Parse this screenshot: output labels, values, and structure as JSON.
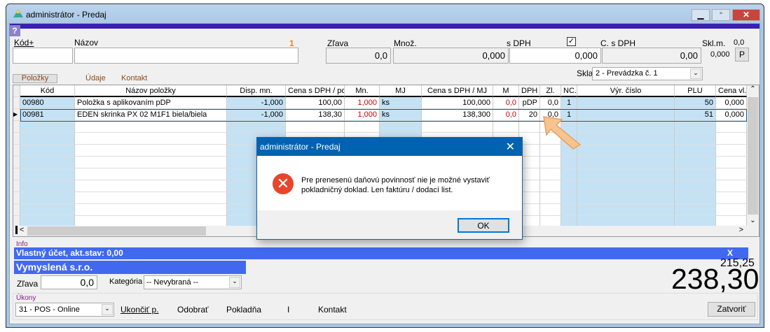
{
  "window": {
    "title": "administrátor - Predaj",
    "help": "?"
  },
  "entry": {
    "kod_label": "Kód+",
    "nazov_label": "Názov",
    "counter": "1",
    "zlava_label": "Zľava",
    "mnoz_label": "Množ.",
    "sdph_label": "s DPH",
    "sdph_checked": true,
    "csdph_label": "C. s DPH",
    "sklm_label": "Skl.m.",
    "sklm_value": "0,0",
    "kod_value": "",
    "nazov_value": "",
    "zlava_value": "0,0",
    "mnoz_value": "0,000",
    "sdph_value": "0,000",
    "csdph_value": "0,00",
    "stock_value": "0,000",
    "p_button": "P"
  },
  "tabs": [
    {
      "label": "Položky",
      "active": true
    },
    {
      "label": "Údaje"
    },
    {
      "label": "Kontakt"
    }
  ],
  "sklad": {
    "label": "Sklad",
    "value": "2 - Prevádzka č. 1"
  },
  "grid": {
    "columns": [
      "Kód",
      "Názov položky",
      "Disp. mn.",
      "Cena s DPH / pol",
      "Mn.",
      "MJ",
      "Cena s DPH / MJ",
      "M",
      "DPH",
      "Zl.",
      "NC.",
      "Výr. číslo",
      "PLU",
      "Cena vl."
    ],
    "rows": [
      [
        "00980",
        "Položka s aplikovaním pDP",
        "-1,000",
        "100,00",
        "1,000",
        "ks",
        "100,000",
        "0,0",
        "pDP",
        "0,0",
        "1",
        "",
        "50",
        "0,000"
      ],
      [
        "00981",
        "EDEN skrinka PX 02 M1F1 biela/biela",
        "-1,000",
        "138,30",
        "1,000",
        "ks",
        "138,300",
        "0,0",
        "20",
        "0,0",
        "1",
        "",
        "51",
        "0,000"
      ]
    ],
    "selected_row": 1
  },
  "info": {
    "label": "Info",
    "account": "Vlastný účet, akt.stav: 0,00",
    "account_close": "X",
    "company": "Vymyslená s.r.o.",
    "zlava_label": "Zľava",
    "zlava_value": "0,0",
    "kategoria_label": "Kategória",
    "kategoria_value": "-- Nevybraná --"
  },
  "totals": {
    "net": "215,25",
    "gross": "238,30"
  },
  "actions": {
    "label": "Úkony",
    "mode": "31 - POS - Online",
    "ukoncit": "Ukončiť p.",
    "odobrat": "Odobrať",
    "pokladna": "Pokladňa",
    "separator": "I",
    "kontakt": "Kontakt",
    "close": "Zatvoriť"
  },
  "dialog": {
    "title": "administrátor - Predaj",
    "message_line1": "Pre prenesenú daňovú povinnosť nie je možné vystaviť",
    "message_line2": "pokladničný doklad. Len faktúru / dodací list.",
    "ok": "OK",
    "icon": "error-icon"
  },
  "colors": {
    "accent_bar": "#3a1fb5",
    "info_bar": "#4169f0",
    "dialog_title": "#0063b1",
    "error": "#e8452c",
    "cursor": "#f7c48e"
  }
}
